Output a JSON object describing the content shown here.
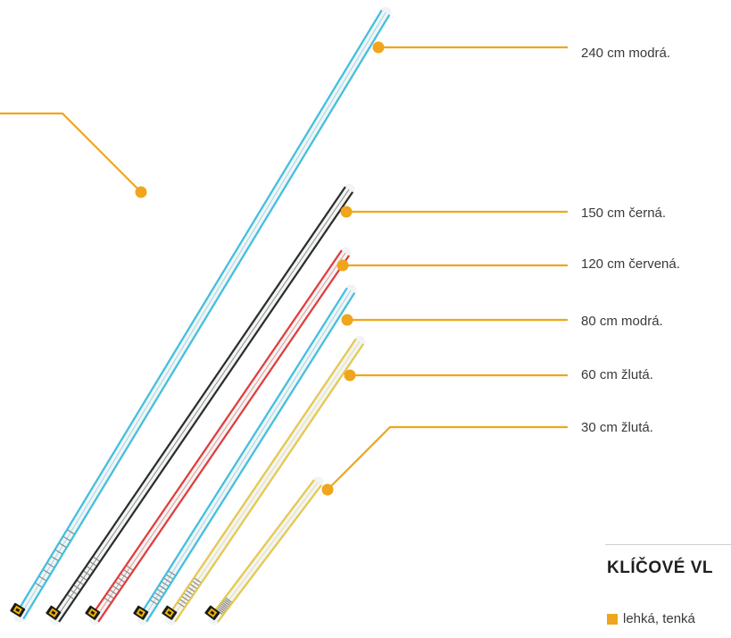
{
  "colors": {
    "accent": "#f0a51c",
    "blue": "#3fbfe0",
    "black": "#2b2b2b",
    "red": "#e23b3b",
    "yellow": "#e6c84a",
    "logo": "#f0b400"
  },
  "slings": [
    {
      "label": "240 cm modrá.",
      "color_key": "blue"
    },
    {
      "label": "150 cm černá.",
      "color_key": "black"
    },
    {
      "label": "120 cm červená.",
      "color_key": "red"
    },
    {
      "label": "80 cm modrá.",
      "color_key": "blue"
    },
    {
      "label": "60 cm žlutá.",
      "color_key": "yellow"
    },
    {
      "label": "30 cm žlutá.",
      "color_key": "yellow"
    }
  ],
  "section": {
    "title": "KLÍČOVÉ VL",
    "bullet": "lehká, tenká"
  }
}
